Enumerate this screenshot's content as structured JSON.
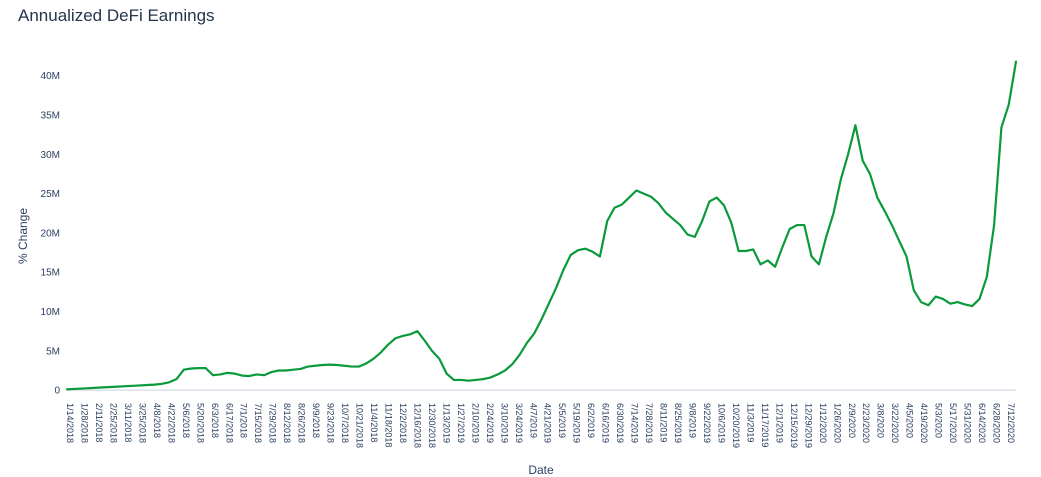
{
  "chart_data": {
    "type": "line",
    "title": "Annualized DeFi Earnings",
    "xlabel": "Date",
    "ylabel": "% Change",
    "ylim": [
      -1,
      42
    ],
    "y_ticks": [
      {
        "value": 0,
        "label": "0"
      },
      {
        "value": 5,
        "label": "5M"
      },
      {
        "value": 10,
        "label": "10M"
      },
      {
        "value": 15,
        "label": "15M"
      },
      {
        "value": 20,
        "label": "20M"
      },
      {
        "value": 25,
        "label": "25M"
      },
      {
        "value": 30,
        "label": "30M"
      },
      {
        "value": 35,
        "label": "35M"
      },
      {
        "value": 40,
        "label": "40M"
      }
    ],
    "x_tick_labels": [
      "1/14/2018",
      "1/28/2018",
      "2/11/2018",
      "2/25/2018",
      "3/11/2018",
      "3/25/2018",
      "4/8/2018",
      "4/22/2018",
      "5/6/2018",
      "5/20/2018",
      "6/3/2018",
      "6/17/2018",
      "7/1/2018",
      "7/15/2018",
      "7/29/2018",
      "8/12/2018",
      "8/26/2018",
      "9/9/2018",
      "9/23/2018",
      "10/7/2018",
      "10/21/2018",
      "11/4/2018",
      "11/18/2018",
      "12/2/2018",
      "12/16/2018",
      "12/30/2018",
      "1/13/2019",
      "1/27/2019",
      "2/10/2019",
      "2/24/2019",
      "3/10/2019",
      "3/24/2019",
      "4/7/2019",
      "4/21/2019",
      "5/5/2019",
      "5/19/2019",
      "6/2/2019",
      "6/16/2019",
      "6/30/2019",
      "7/14/2019",
      "7/28/2019",
      "8/11/2019",
      "8/25/2019",
      "9/8/2019",
      "9/22/2019",
      "10/6/2019",
      "10/20/2019",
      "11/3/2019",
      "11/17/2019",
      "12/1/2019",
      "12/15/2019",
      "12/29/2019",
      "1/12/2020",
      "1/26/2020",
      "2/9/2020",
      "2/23/2020",
      "3/8/2020",
      "3/22/2020",
      "4/5/2020",
      "4/19/2020",
      "5/3/2020",
      "5/17/2020",
      "5/31/2020",
      "6/14/2020",
      "6/28/2020",
      "7/12/2020"
    ],
    "series": [
      {
        "color": "#0a9a3c",
        "values": [
          0.1,
          0.15,
          0.2,
          0.25,
          0.3,
          0.35,
          0.4,
          0.45,
          0.5,
          0.55,
          0.6,
          0.65,
          0.7,
          0.8,
          1.0,
          1.4,
          2.6,
          2.75,
          2.8,
          2.8,
          1.9,
          2.0,
          2.2,
          2.1,
          1.85,
          1.8,
          2.0,
          1.9,
          2.3,
          2.5,
          2.5,
          2.6,
          2.7,
          3.0,
          3.1,
          3.2,
          3.25,
          3.2,
          3.1,
          3.0,
          3.0,
          3.4,
          4.0,
          4.8,
          5.8,
          6.6,
          6.9,
          7.1,
          7.5,
          6.3,
          5.0,
          4.0,
          2.1,
          1.3,
          1.3,
          1.2,
          1.3,
          1.4,
          1.6,
          2.0,
          2.5,
          3.3,
          4.5,
          6.0,
          7.2,
          9.0,
          11.0,
          13.0,
          15.3,
          17.2,
          17.8,
          18.0,
          17.6,
          17.0,
          21.5,
          23.2,
          23.6,
          24.5,
          25.4,
          25.0,
          24.6,
          23.8,
          22.6,
          21.8,
          21.0,
          19.8,
          19.5,
          21.5,
          24.0,
          24.5,
          23.5,
          21.3,
          17.7,
          17.7,
          17.9,
          16.0,
          16.5,
          15.7,
          18.2,
          20.5,
          21.0,
          21.0,
          17.0,
          16.0,
          19.5,
          22.5,
          26.8,
          30.0,
          33.7,
          29.2,
          27.5,
          24.5,
          22.8,
          21.0,
          19.0,
          17.0,
          12.7,
          11.2,
          10.8,
          11.9,
          11.6,
          11.0,
          11.2,
          10.9,
          10.7,
          11.6,
          14.4,
          21.0,
          33.4,
          36.3,
          41.8
        ]
      }
    ]
  }
}
